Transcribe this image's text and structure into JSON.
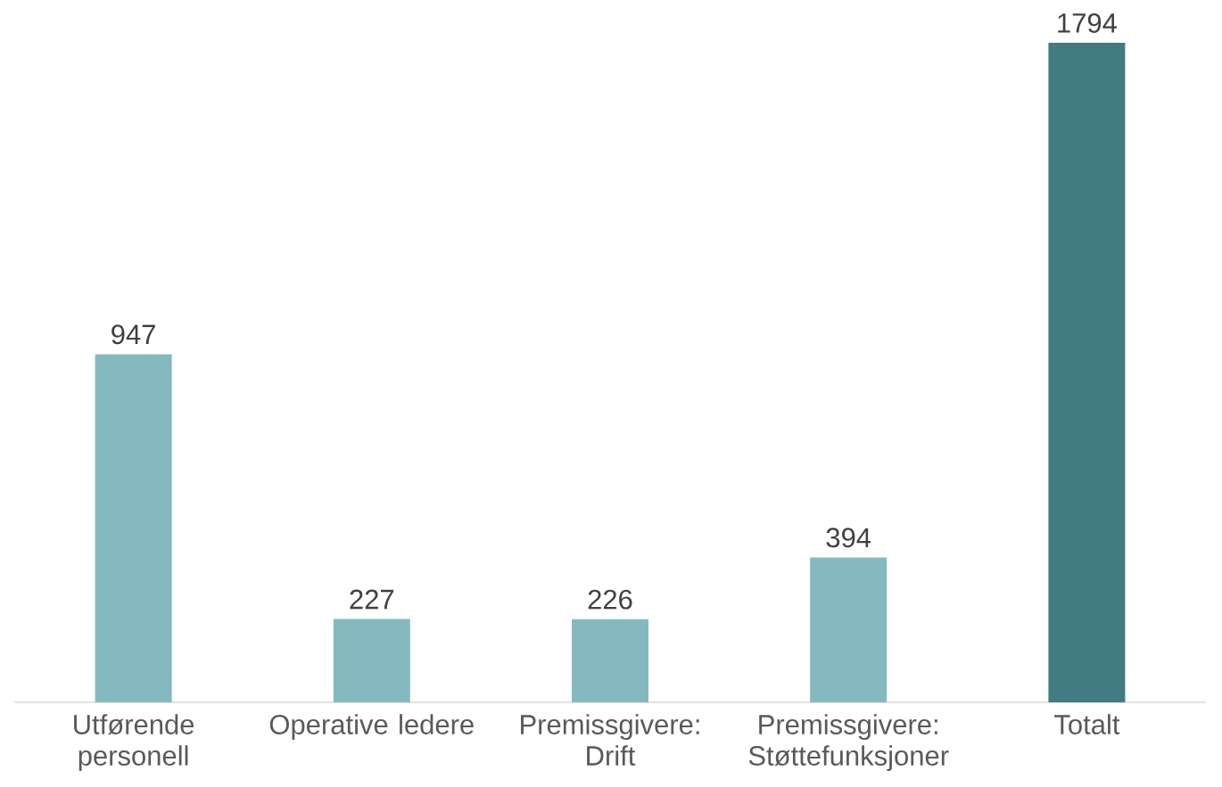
{
  "chart_data": {
    "type": "bar",
    "categories": [
      "Utførende personell",
      "Operative ledere",
      "Premissgivere: Drift",
      "Premissgivere: Støttefunksjoner",
      "Totalt"
    ],
    "values": [
      947,
      227,
      226,
      394,
      1794
    ],
    "colors": [
      "#84babf",
      "#84babf",
      "#84babf",
      "#84babf",
      "#427b82"
    ],
    "data_labels": true,
    "tick_labels": "x",
    "grid": false
  }
}
